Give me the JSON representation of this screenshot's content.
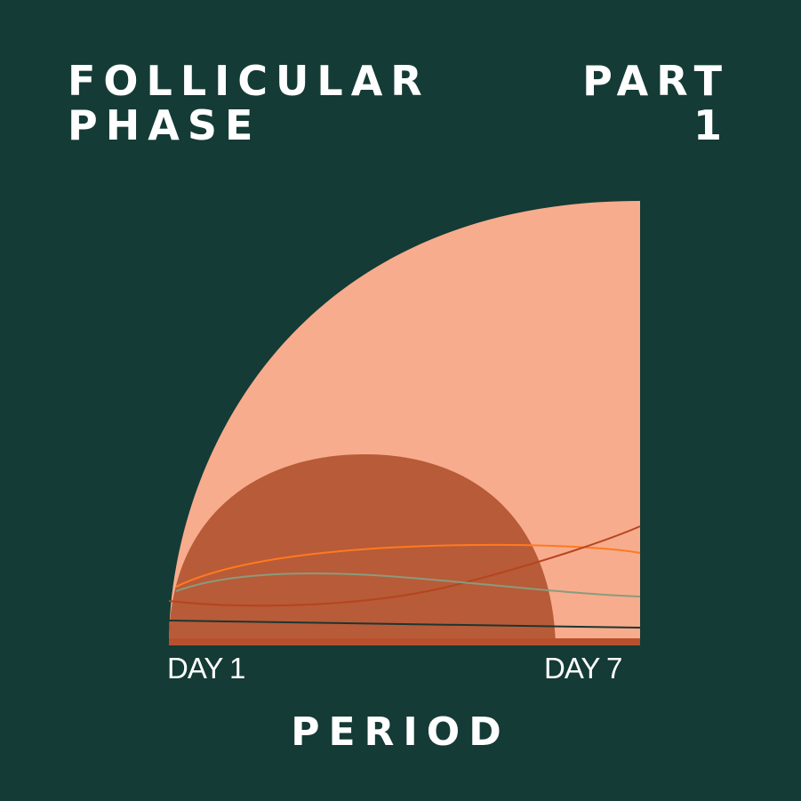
{
  "colors": {
    "background": "#143b35",
    "large_shape": "#f7ac8d",
    "dome_shape": "#b85b38",
    "line_orange": "#ff7a1f",
    "line_rust": "#b5451f",
    "line_green": "#8a9b7e",
    "line_dark": "#1d3531",
    "base_bar": "#b8502e",
    "text": "#ffffff"
  },
  "title": {
    "left_lines": [
      "FOLLICULAR",
      "PHASE"
    ],
    "right_lines": [
      "PART",
      "1"
    ]
  },
  "axis": {
    "start_label": "DAY 1",
    "end_label": "DAY 7"
  },
  "bottom_label": "PERIOD"
}
